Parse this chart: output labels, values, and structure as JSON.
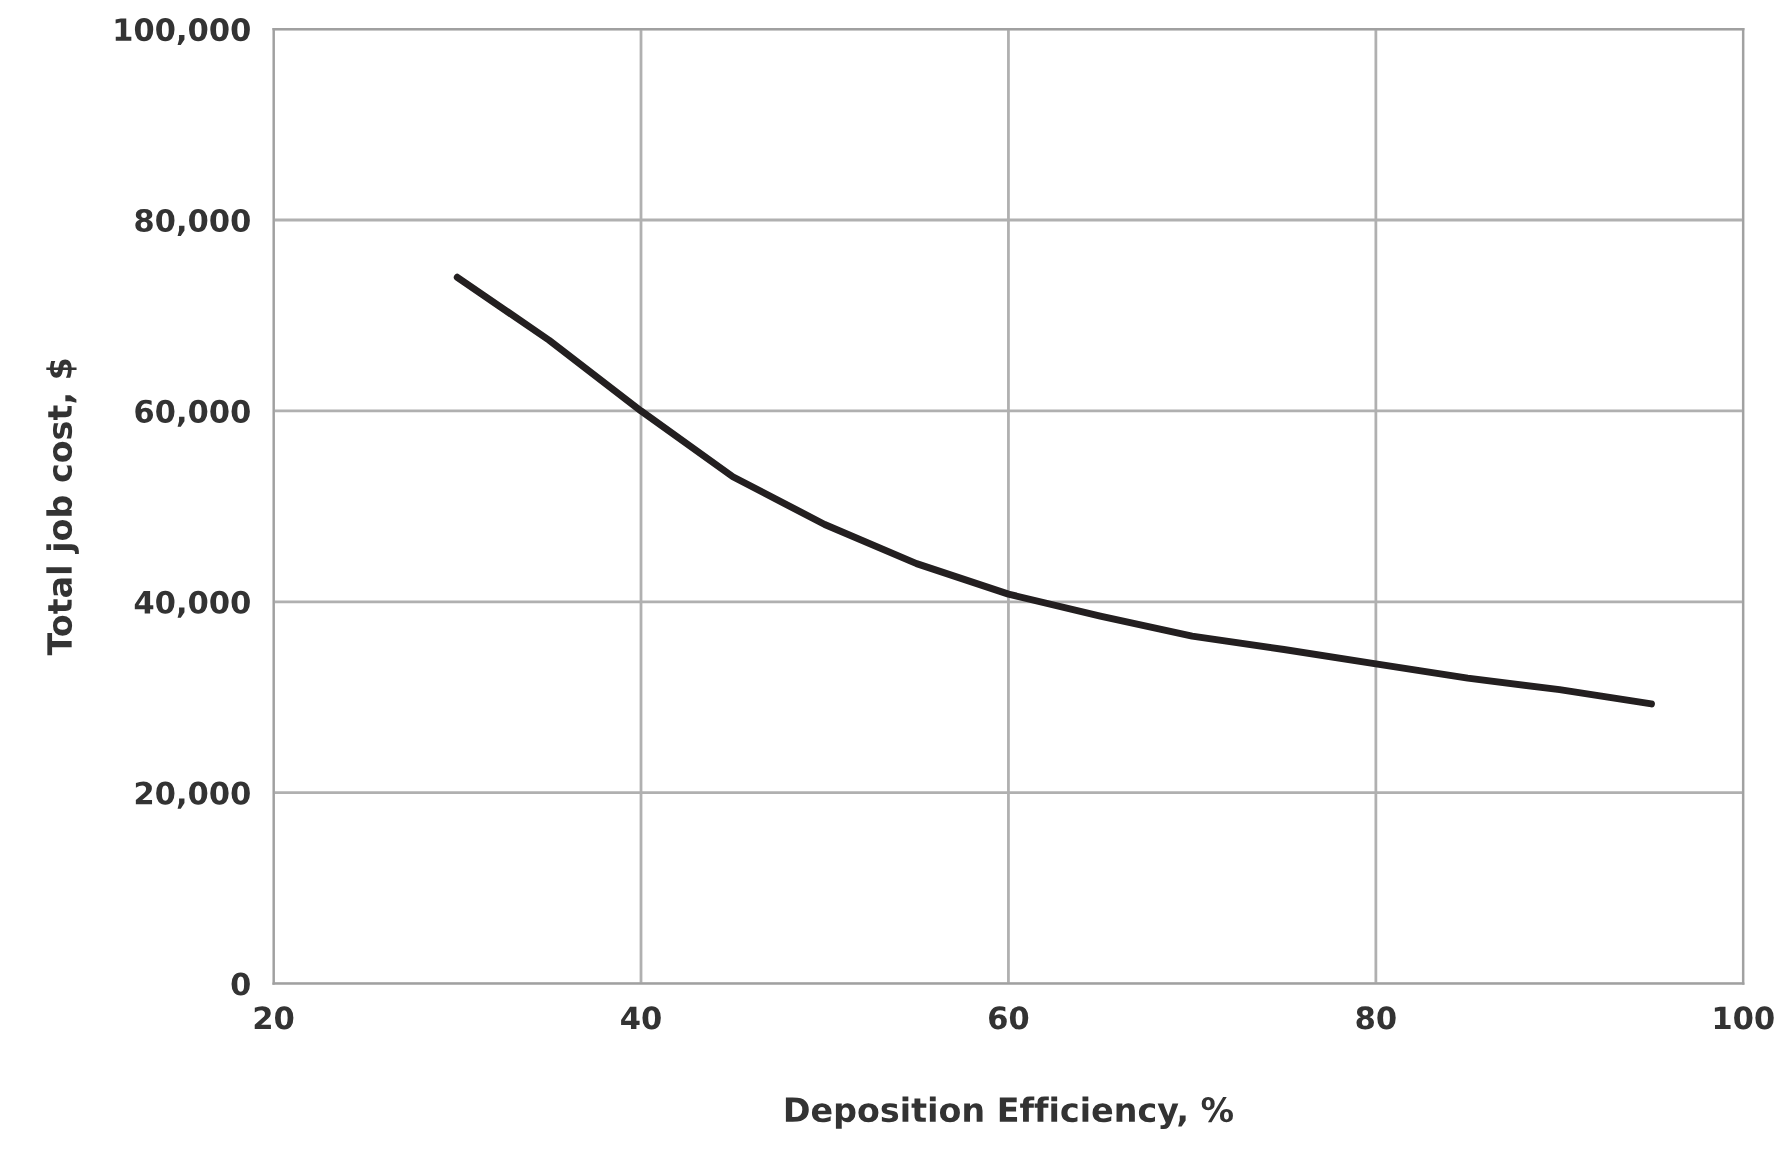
{
  "chart_data": {
    "type": "line",
    "xlabel": "Deposition Efficiency, %",
    "ylabel": "Total job cost, $",
    "series": [
      {
        "color": "#231f20",
        "x": [
          30,
          35,
          40,
          45,
          50,
          55,
          60,
          65,
          70,
          75,
          80,
          85,
          90,
          95
        ],
        "values": [
          74000,
          67400,
          60000,
          53100,
          48100,
          44000,
          40800,
          38500,
          36400,
          35000,
          33500,
          32000,
          30800,
          29300
        ]
      }
    ],
    "xlim": [
      20,
      100
    ],
    "xticks": [
      20,
      40,
      60,
      80,
      100
    ],
    "ylim": [
      0,
      100000
    ],
    "yticks": [
      {
        "value": 0,
        "label": "0"
      },
      {
        "value": 20000,
        "label": "20,000"
      },
      {
        "value": 40000,
        "label": "40,000"
      },
      {
        "value": 60000,
        "label": "60,000"
      },
      {
        "value": 80000,
        "label": "80,000"
      },
      {
        "value": 100000,
        "label": "100,000"
      }
    ],
    "grid": true,
    "marker": "none",
    "line_style": "solid"
  }
}
